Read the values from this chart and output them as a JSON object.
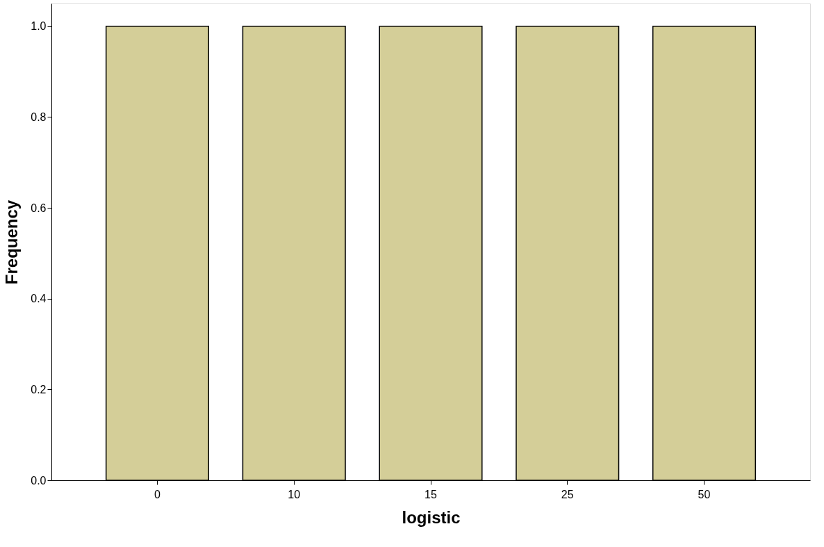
{
  "chart_data": {
    "type": "bar",
    "xlabel": "logistic",
    "ylabel": "Frequency",
    "categories": [
      "0",
      "10",
      "15",
      "25",
      "50"
    ],
    "series": [
      {
        "color": "#d4ce98",
        "values": [
          1,
          1,
          1,
          1,
          1
        ]
      }
    ],
    "ylim": [
      0,
      1.05
    ],
    "yticks": [
      {
        "value": 0,
        "label": "0.0"
      },
      {
        "value": 0.2,
        "label": "0.2"
      },
      {
        "value": 0.4,
        "label": "0.4"
      },
      {
        "value": 0.6,
        "label": "0.6"
      },
      {
        "value": 0.8,
        "label": "0.8"
      },
      {
        "value": 1,
        "label": "1.0"
      }
    ],
    "grid": false,
    "legend": false
  }
}
